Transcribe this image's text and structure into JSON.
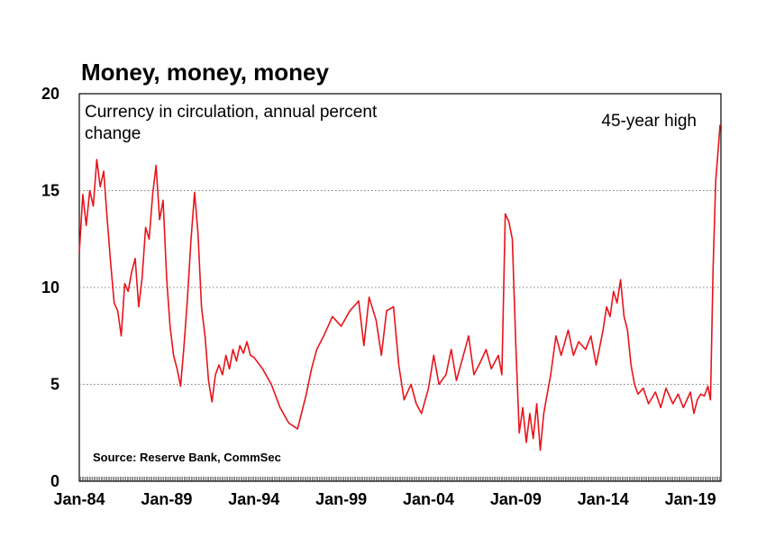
{
  "chart_data": {
    "type": "line",
    "title": "Money, money, money",
    "subtitle_line1": "Currency in circulation, annual percent",
    "subtitle_line2": "change",
    "annotation": "45-year high",
    "source": "Source: Reserve Bank, CommSec",
    "xlabel": "",
    "ylabel": "",
    "ylim": [
      0,
      20
    ],
    "xlim": [
      1984.0,
      2020.75
    ],
    "yticks": [
      0,
      5,
      10,
      15,
      20
    ],
    "xtick_labels": [
      {
        "value": 1984,
        "label": "Jan-84"
      },
      {
        "value": 1989,
        "label": "Jan-89"
      },
      {
        "value": 1994,
        "label": "Jan-94"
      },
      {
        "value": 1999,
        "label": "Jan-99"
      },
      {
        "value": 2004,
        "label": "Jan-04"
      },
      {
        "value": 2009,
        "label": "Jan-09"
      },
      {
        "value": 2014,
        "label": "Jan-14"
      },
      {
        "value": 2019,
        "label": "Jan-19"
      }
    ],
    "grid": "horizontal-dotted",
    "line_color": "#e8141b",
    "series": [
      {
        "x": [
          1984.0,
          1984.2,
          1984.4,
          1984.6,
          1984.8,
          1985.0,
          1985.2,
          1985.4,
          1985.6,
          1985.8,
          1986.0,
          1986.2,
          1986.4,
          1986.6,
          1986.8,
          1987.0,
          1987.2,
          1987.4,
          1987.6,
          1987.8,
          1988.0,
          1988.2,
          1988.4,
          1988.6,
          1988.8,
          1989.0,
          1989.2,
          1989.4,
          1989.6,
          1989.8,
          1990.0,
          1990.2,
          1990.4,
          1990.6,
          1990.8,
          1991.0,
          1991.2,
          1991.4,
          1991.6,
          1991.8,
          1992.0,
          1992.2,
          1992.4,
          1992.6,
          1992.8,
          1993.0,
          1993.2,
          1993.4,
          1993.6,
          1993.8,
          1994.0,
          1994.5,
          1995.0,
          1995.5,
          1996.0,
          1996.5,
          1997.0,
          1997.3,
          1997.6,
          1998.0,
          1998.5,
          1999.0,
          1999.5,
          2000.0,
          2000.3,
          2000.6,
          2001.0,
          2001.3,
          2001.6,
          2002.0,
          2002.3,
          2002.6,
          2003.0,
          2003.3,
          2003.6,
          2004.0,
          2004.3,
          2004.6,
          2005.0,
          2005.3,
          2005.6,
          2006.0,
          2006.3,
          2006.6,
          2007.0,
          2007.3,
          2007.6,
          2008.0,
          2008.2,
          2008.4,
          2008.6,
          2008.8,
          2009.0,
          2009.2,
          2009.4,
          2009.6,
          2009.8,
          2010.0,
          2010.2,
          2010.4,
          2010.6,
          2010.8,
          2011.0,
          2011.3,
          2011.6,
          2012.0,
          2012.3,
          2012.6,
          2013.0,
          2013.3,
          2013.6,
          2014.0,
          2014.2,
          2014.4,
          2014.6,
          2014.8,
          2015.0,
          2015.2,
          2015.4,
          2015.6,
          2015.8,
          2016.0,
          2016.3,
          2016.6,
          2017.0,
          2017.3,
          2017.6,
          2018.0,
          2018.3,
          2018.6,
          2019.0,
          2019.2,
          2019.4,
          2019.6,
          2019.8,
          2020.0,
          2020.15,
          2020.3,
          2020.45,
          2020.6,
          2020.7
        ],
        "values": [
          11.8,
          14.8,
          13.2,
          15.0,
          14.2,
          16.6,
          15.2,
          16.0,
          13.5,
          11.2,
          9.2,
          8.8,
          7.5,
          10.2,
          9.8,
          10.8,
          11.5,
          9.0,
          10.5,
          13.1,
          12.5,
          14.8,
          16.3,
          13.5,
          14.5,
          10.5,
          8.0,
          6.5,
          5.8,
          4.9,
          7.0,
          9.5,
          12.5,
          14.9,
          12.8,
          9.0,
          7.5,
          5.2,
          4.1,
          5.5,
          6.0,
          5.5,
          6.5,
          5.8,
          6.8,
          6.2,
          7.0,
          6.6,
          7.2,
          6.5,
          6.4,
          5.8,
          5.0,
          3.8,
          3.0,
          2.7,
          4.5,
          5.8,
          6.8,
          7.5,
          8.5,
          8.0,
          8.8,
          9.3,
          7.0,
          9.5,
          8.3,
          6.5,
          8.8,
          9.0,
          6.0,
          4.2,
          5.0,
          4.0,
          3.5,
          4.8,
          6.5,
          5.0,
          5.5,
          6.8,
          5.2,
          6.5,
          7.5,
          5.5,
          6.2,
          6.8,
          5.8,
          6.5,
          5.5,
          13.8,
          13.4,
          12.5,
          7.0,
          2.5,
          3.8,
          2.0,
          3.5,
          2.2,
          4.0,
          1.6,
          3.5,
          4.5,
          5.5,
          7.5,
          6.5,
          7.8,
          6.5,
          7.2,
          6.8,
          7.5,
          6.0,
          7.8,
          9.0,
          8.5,
          9.8,
          9.2,
          10.4,
          8.5,
          7.8,
          6.0,
          5.0,
          4.5,
          4.8,
          4.0,
          4.6,
          3.8,
          4.8,
          4.0,
          4.5,
          3.8,
          4.6,
          3.5,
          4.2,
          4.5,
          4.4,
          4.9,
          4.2,
          11.0,
          15.5,
          17.2,
          18.4
        ]
      }
    ]
  }
}
